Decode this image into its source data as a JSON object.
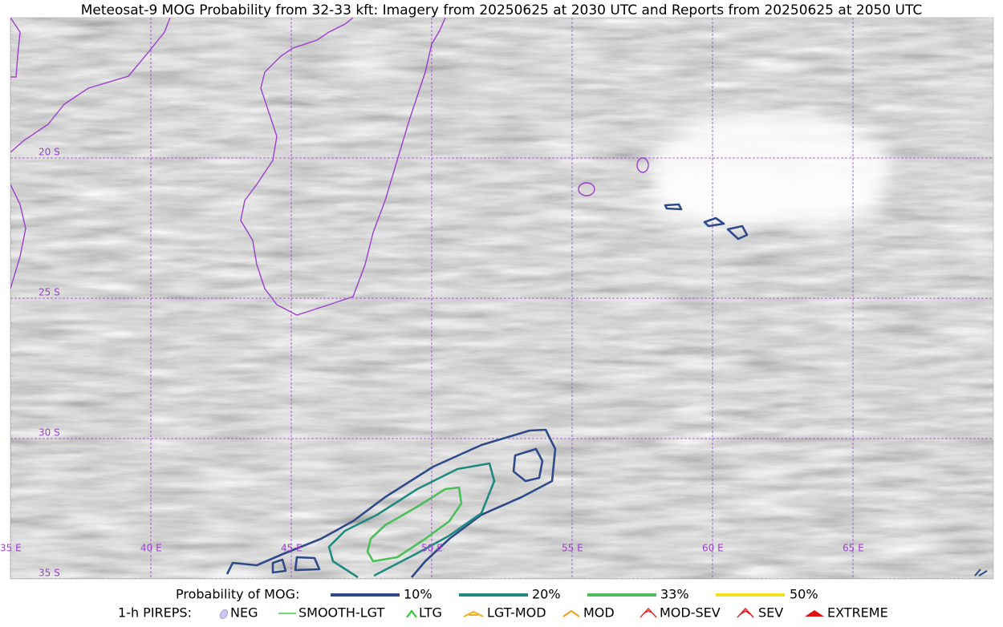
{
  "title": "Meteosat-9 MOG Probability from 32-33 kft: Imagery from 20250625 at 2030 UTC and Reports from 20250625 at 2050 UTC",
  "map": {
    "lat_labels": [
      "20 S",
      "25 S",
      "30 S",
      "35 S"
    ],
    "lon_labels": [
      "35 E",
      "40 E",
      "45 E",
      "50 E",
      "55 E",
      "60 E",
      "65 E"
    ]
  },
  "legend": {
    "probability": {
      "label": "Probability of MOG:",
      "items": [
        "10%",
        "20%",
        "33%",
        "50%"
      ]
    },
    "pireps": {
      "label": "1-h PIREPS:",
      "items": [
        "NEG",
        "SMOOTH-LGT",
        "LTG",
        "LGT-MOD",
        "MOD",
        "MOD-SEV",
        "SEV",
        "EXTREME"
      ]
    }
  }
}
